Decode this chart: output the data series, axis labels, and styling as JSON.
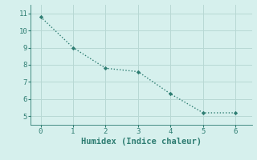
{
  "x": [
    0,
    1,
    2,
    3,
    4,
    5,
    6
  ],
  "y": [
    10.8,
    9.0,
    7.8,
    7.6,
    6.3,
    5.2,
    5.2
  ],
  "line_color": "#2e7d72",
  "marker": "D",
  "marker_size": 2.2,
  "background_color": "#d6f0ed",
  "grid_color": "#b8d8d4",
  "xlabel": "Humidex (Indice chaleur)",
  "xlim": [
    -0.3,
    6.5
  ],
  "ylim": [
    4.5,
    11.5
  ],
  "xticks": [
    0,
    1,
    2,
    3,
    4,
    5,
    6
  ],
  "yticks": [
    5,
    6,
    7,
    8,
    9,
    10,
    11
  ],
  "tick_color": "#2e7d72",
  "label_color": "#2e7d72",
  "font_family": "monospace",
  "tick_fontsize": 6.5,
  "xlabel_fontsize": 7.5
}
